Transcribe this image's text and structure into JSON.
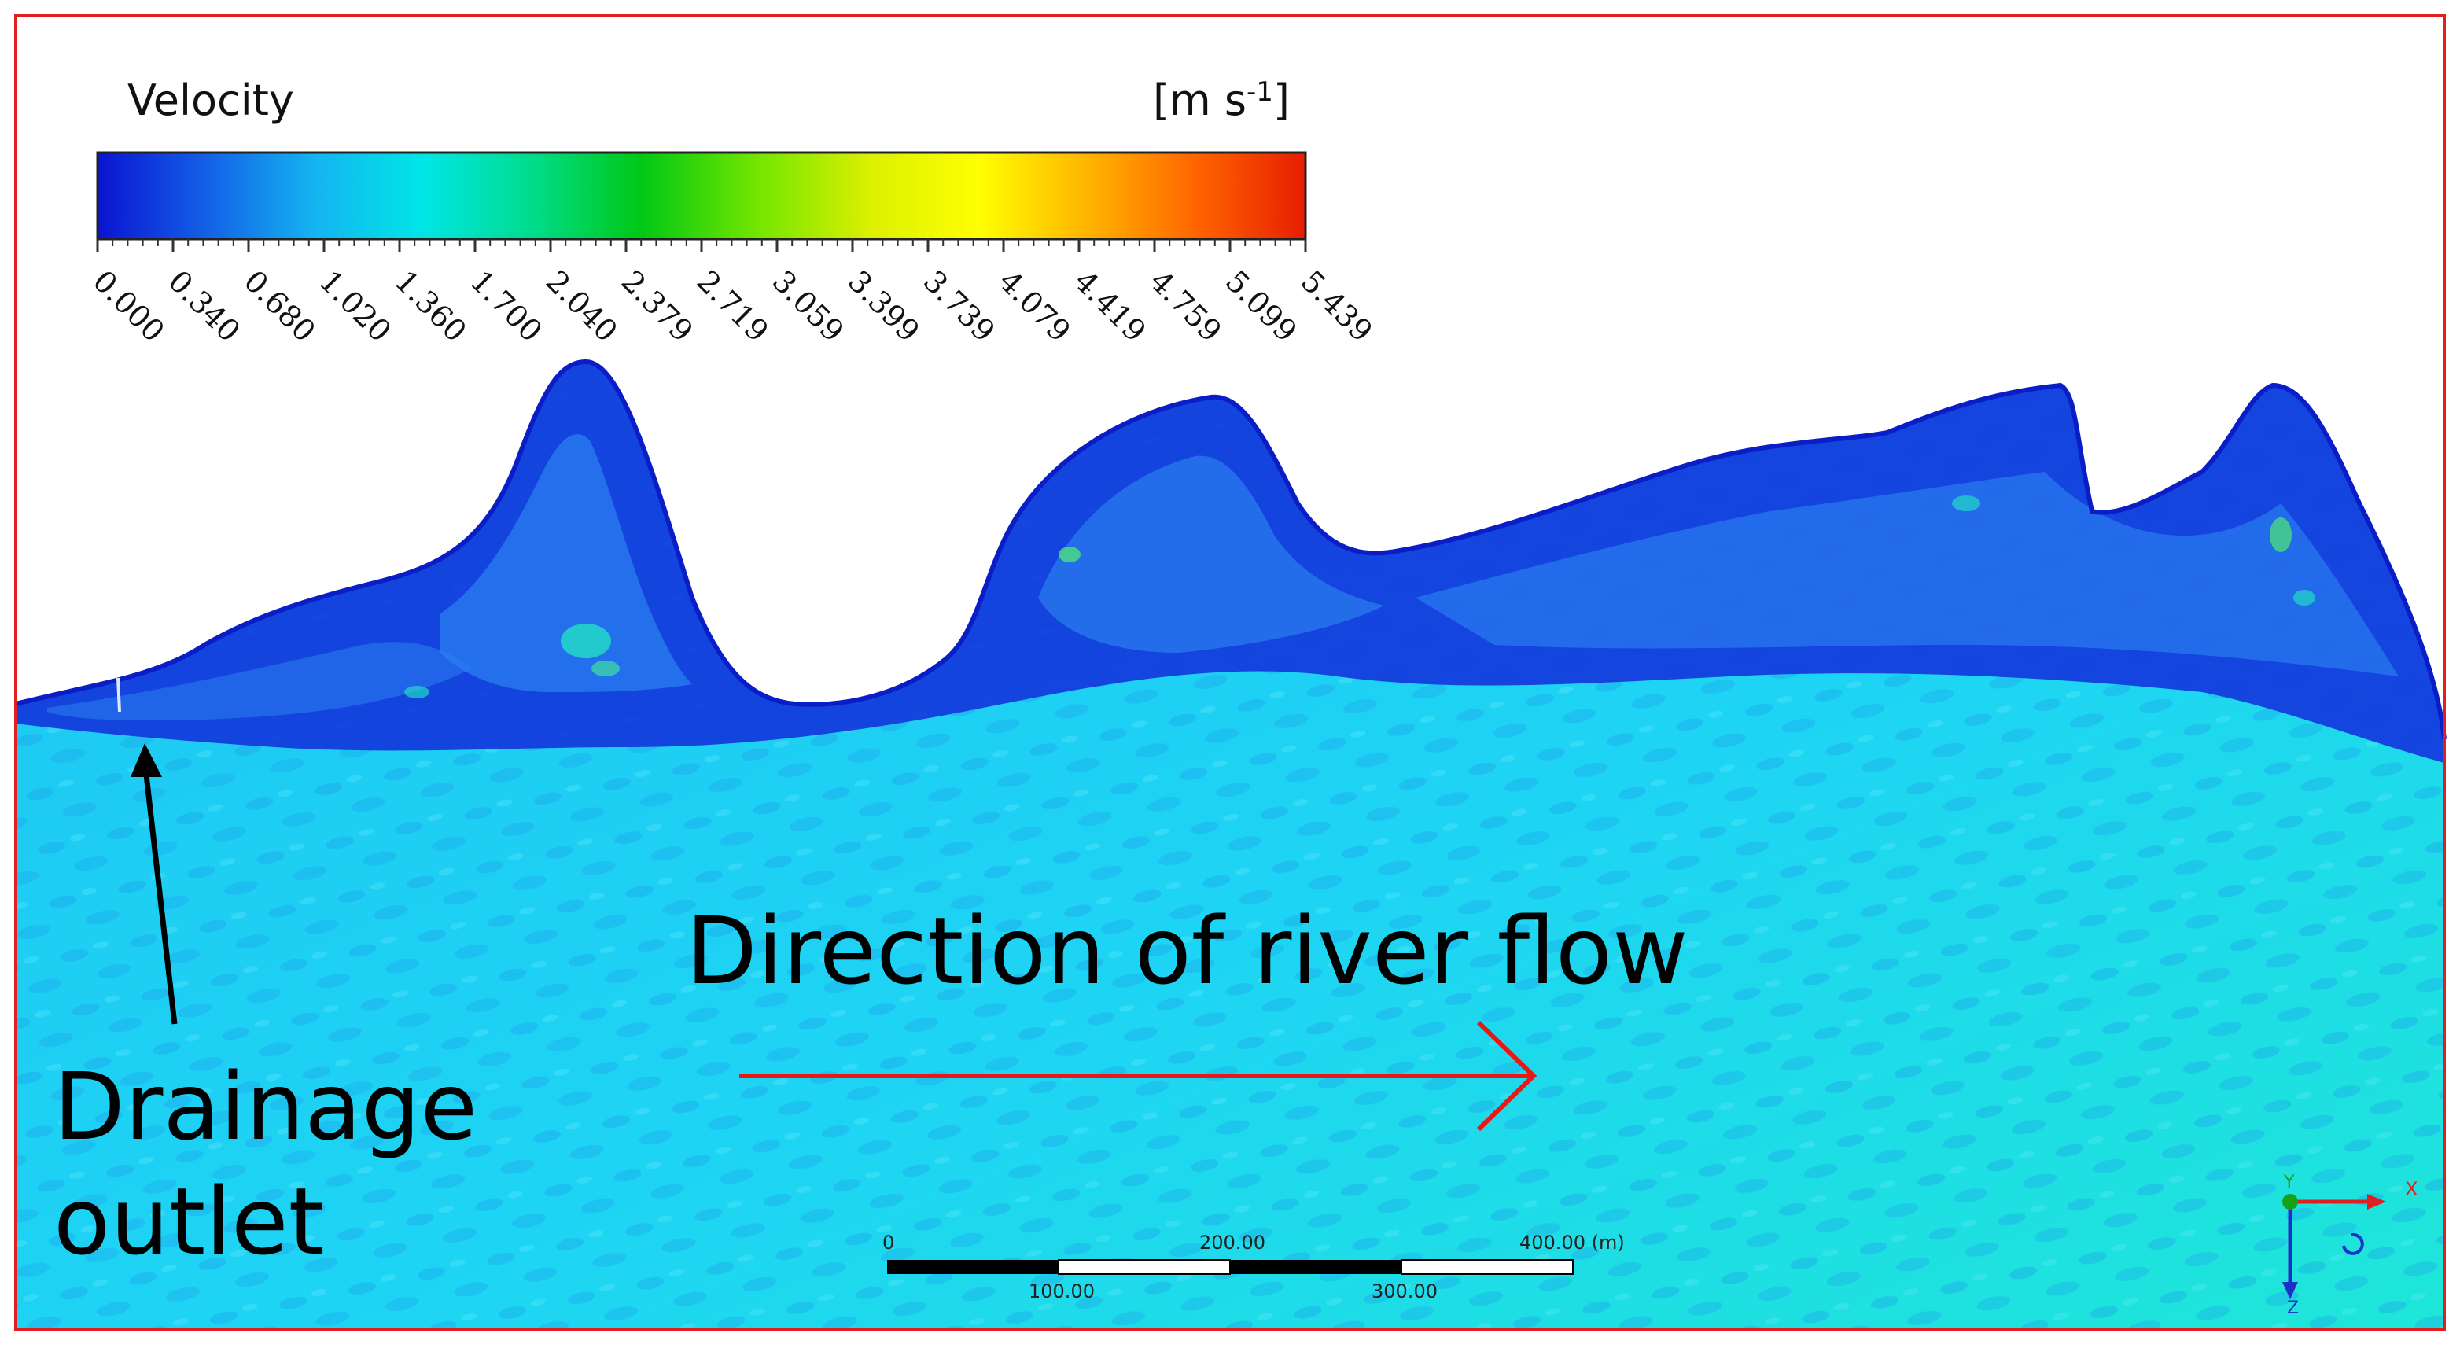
{
  "legend": {
    "title": "Velocity",
    "unit": "[m s",
    "unit_sup": "-1",
    "unit_close": "]",
    "ticks": [
      "0.000",
      "0.340",
      "0.680",
      "1.020",
      "1.360",
      "1.700",
      "2.040",
      "2.379",
      "2.719",
      "3.059",
      "3.399",
      "3.739",
      "4.079",
      "4.419",
      "4.759",
      "5.099",
      "5.439"
    ],
    "range": [
      0.0,
      5.439
    ],
    "colormap": [
      "#0a14d2",
      "#1460e6",
      "#14b4f0",
      "#00e6e6",
      "#00dc8c",
      "#00c814",
      "#78e600",
      "#dcf000",
      "#ffff00",
      "#ffb400",
      "#ff6400",
      "#e61e00"
    ]
  },
  "annotations": {
    "flow_direction": "Direction of river flow",
    "drainage_line1": "Drainage",
    "drainage_line2": "outlet"
  },
  "scale_bar": {
    "top_labels": [
      "0",
      "200.00",
      "400.00 (m)"
    ],
    "bottom_labels": [
      "100.00",
      "300.00"
    ]
  },
  "axes_triad": {
    "x": "X",
    "y": "Y",
    "z": "Z"
  },
  "colors": {
    "frame": "#e02020",
    "water": "#1ed0f4",
    "bank_flow": "#1230d8",
    "flow_arrow": "#e81818"
  }
}
